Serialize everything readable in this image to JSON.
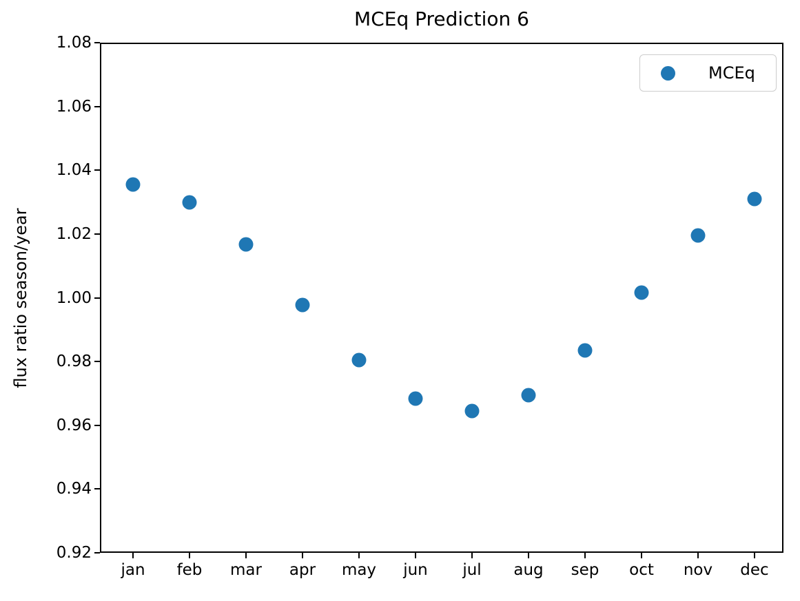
{
  "chart_data": {
    "type": "scatter",
    "title": "MCEq Prediction 6",
    "xlabel": "",
    "ylabel": "flux ratio season/year",
    "categories": [
      "jan",
      "feb",
      "mar",
      "apr",
      "may",
      "jun",
      "jul",
      "aug",
      "sep",
      "oct",
      "nov",
      "dec"
    ],
    "series": [
      {
        "name": "MCEq",
        "marker": "circle",
        "color": "#1f77b4",
        "values": [
          1.0355,
          1.03,
          1.0168,
          0.9977,
          0.9804,
          0.9683,
          0.9644,
          0.9694,
          0.9835,
          1.0017,
          1.0195,
          1.031
        ]
      }
    ],
    "ylim": [
      0.92,
      1.08
    ],
    "ytick_labels": [
      "0.92",
      "0.94",
      "0.96",
      "0.98",
      "1.00",
      "1.02",
      "1.04",
      "1.06",
      "1.08"
    ],
    "grid": false,
    "legend": {
      "position": "upper right",
      "entries": [
        {
          "label": "MCEq",
          "marker_color": "#1f77b4"
        }
      ]
    },
    "colors": {
      "marker": "#1f77b4",
      "axis": "#000000",
      "text": "#000000",
      "legend_border": "#cccccc",
      "background": "#ffffff"
    }
  }
}
